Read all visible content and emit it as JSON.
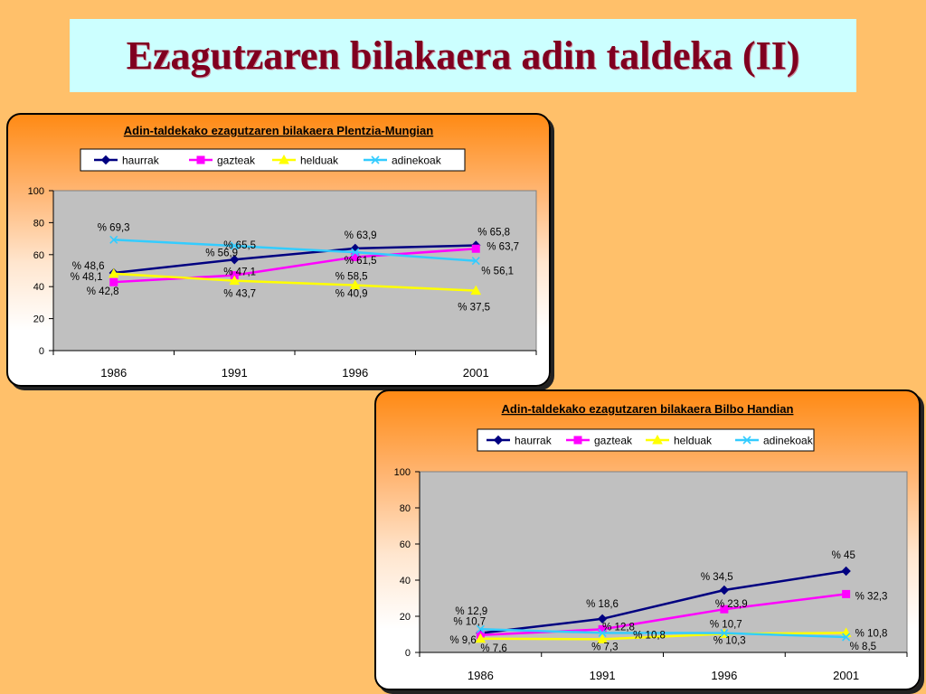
{
  "slide_title": "Ezagutzaren bilakaera adin taldeka (II)",
  "chart_data": [
    {
      "type": "line",
      "title": "Adin-taldekako ezagutzaren bilakaera Plentzia-Mungian",
      "categories": [
        "1986",
        "1991",
        "1996",
        "2001"
      ],
      "ylim": [
        0,
        100
      ],
      "yticks": [
        0,
        20,
        40,
        60,
        80,
        100
      ],
      "grid": false,
      "legend_position": "top",
      "series": [
        {
          "name": "haurrak",
          "color": "#000080",
          "marker": "diamond",
          "values": [
            48.6,
            56.9,
            63.9,
            65.8
          ],
          "labels": [
            "% 48,6",
            "% 56,9",
            "% 63,9",
            "% 65,8"
          ]
        },
        {
          "name": "gazteak",
          "color": "#ff00ff",
          "marker": "square",
          "values": [
            42.8,
            47.1,
            58.5,
            63.7
          ],
          "labels": [
            "% 42,8",
            "% 47,1",
            "% 58,5",
            "% 63,7"
          ]
        },
        {
          "name": "helduak",
          "color": "#ffff00",
          "marker": "triangle",
          "values": [
            48.1,
            43.7,
            40.9,
            37.5
          ],
          "labels": [
            "% 48,1",
            "% 43,7",
            "% 40,9",
            "% 37,5"
          ]
        },
        {
          "name": "adinekoak",
          "color": "#33ccff",
          "marker": "x",
          "values": [
            69.3,
            65.5,
            61.5,
            56.1
          ],
          "labels": [
            "% 69,3",
            "% 65,5",
            "% 61,5",
            "% 56,1"
          ]
        }
      ]
    },
    {
      "type": "line",
      "title": "Adin-taldekako ezagutzaren bilakaera Bilbo Handian",
      "categories": [
        "1986",
        "1991",
        "1996",
        "2001"
      ],
      "ylim": [
        0,
        100
      ],
      "yticks": [
        0,
        20,
        40,
        60,
        80,
        100
      ],
      "grid": false,
      "legend_position": "top",
      "series": [
        {
          "name": "haurrak",
          "color": "#000080",
          "marker": "diamond",
          "values": [
            10.7,
            18.6,
            34.5,
            45
          ],
          "labels": [
            "% 10,7",
            "% 18,6",
            "% 34,5",
            "% 45"
          ]
        },
        {
          "name": "gazteak",
          "color": "#ff00ff",
          "marker": "square",
          "values": [
            9.6,
            12.8,
            23.9,
            32.3
          ],
          "labels": [
            "% 9,6",
            "% 12,8",
            "% 23,9",
            "% 32,3"
          ]
        },
        {
          "name": "helduak",
          "color": "#ffff00",
          "marker": "triangle",
          "values": [
            7.6,
            7.3,
            10.3,
            10.8
          ],
          "labels": [
            "% 7,6",
            "% 7,3",
            "% 10,3",
            "% 10,8"
          ]
        },
        {
          "name": "adinekoak",
          "color": "#33ccff",
          "marker": "x",
          "values": [
            12.9,
            10.8,
            10.7,
            8.5
          ],
          "labels": [
            "% 12,9",
            "% 10,8",
            "% 10,7",
            "% 8,5"
          ]
        }
      ]
    }
  ]
}
